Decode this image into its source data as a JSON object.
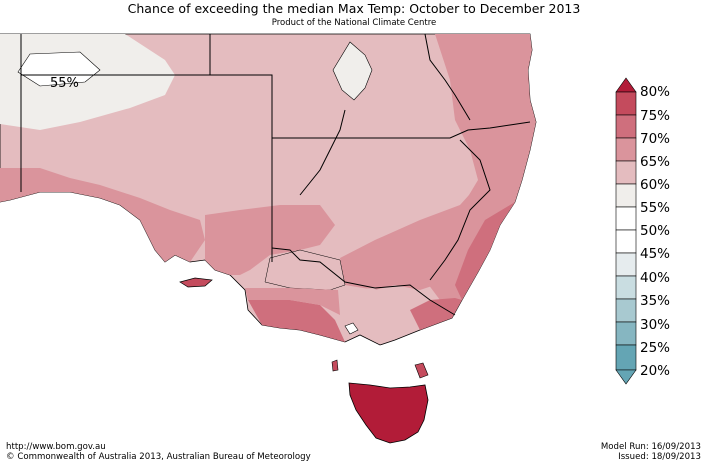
{
  "header": {
    "title": "Chance of exceeding the median Max Temp: October to December 2013",
    "subtitle": "Product of the National Climate Centre"
  },
  "map": {
    "region_label": "55%"
  },
  "legend": {
    "labels": [
      "80%",
      "75%",
      "70%",
      "65%",
      "60%",
      "55%",
      "50%",
      "45%",
      "40%",
      "35%",
      "30%",
      "25%",
      "20%"
    ],
    "colors": [
      "#b21c38",
      "#c44b5d",
      "#cf6f7d",
      "#da949c",
      "#e4bcbf",
      "#f0eeeb",
      "#ffffff",
      "#ffffff",
      "#e6ecee",
      "#c9dde1",
      "#a8c9d0",
      "#86b6c1",
      "#64a5b4"
    ]
  },
  "footer": {
    "url": "http://www.bom.gov.au",
    "copyright": "© Commonwealth of Australia 2013, Australian Bureau of Meteorology",
    "model_run": "Model Run: 16/09/2013",
    "issued": "Issued: 18/09/2013"
  }
}
